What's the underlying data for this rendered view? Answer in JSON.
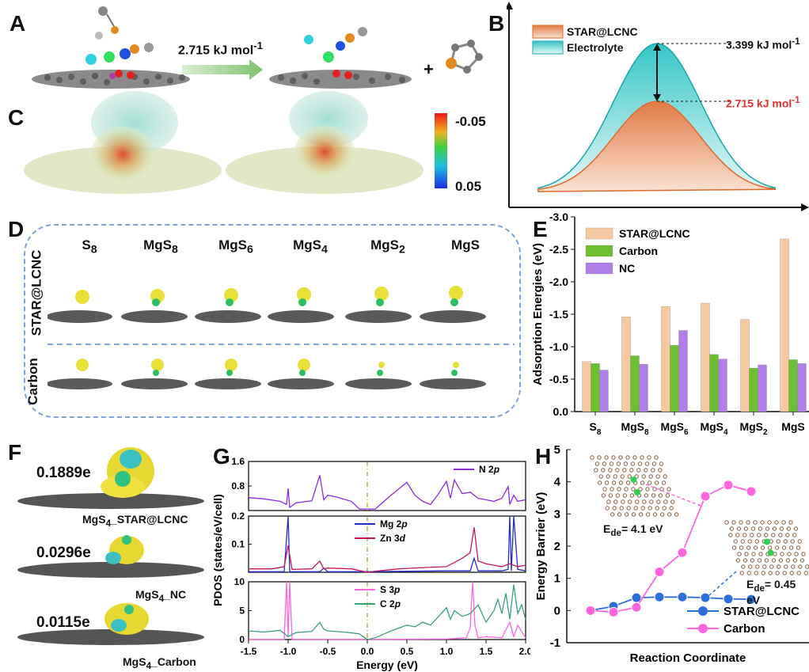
{
  "panels": {
    "A": {
      "label": "A",
      "arrow_value": "2.715 kJ mol",
      "arrow_sup": "-1",
      "plus": "+"
    },
    "B": {
      "label": "B",
      "legend": [
        "STAR@LCNC",
        "Electrolyte"
      ],
      "colors": {
        "star": "#e07a45",
        "electrolyte": "#35c5c7"
      },
      "annot_high_value": "3.399 kJ mol",
      "annot_high_sup": "-1",
      "annot_low_value": "2.715 kJ mol",
      "annot_low_sup": "-1",
      "annot_low_color": "#e0312b"
    },
    "C": {
      "label": "C",
      "colorbar_top": "-0.05",
      "colorbar_bottom": "0.05"
    },
    "D": {
      "label": "D",
      "columns": [
        "S",
        "MgS",
        "MgS",
        "MgS",
        "MgS",
        "MgS"
      ],
      "column_subs": [
        "8",
        "8",
        "6",
        "4",
        "2",
        ""
      ],
      "rows": [
        "STAR@LCNC",
        "Carbon"
      ]
    },
    "E": {
      "label": "E"
    },
    "F": {
      "label": "F",
      "charges": [
        "0.1889e",
        "0.0296e",
        "0.0115e"
      ],
      "names": [
        "MgS",
        "MgS",
        "MgS"
      ],
      "name_subs": [
        "4",
        "4",
        "4"
      ],
      "name_suffix": [
        "_STAR@LCNC",
        "_NC",
        "_Carbon"
      ]
    },
    "G": {
      "label": "G"
    },
    "H": {
      "label": "H",
      "inset1": "E",
      "inset1_sub": "de",
      "inset1_value": "= 4.1 eV",
      "inset2": "E",
      "inset2_sub": "de",
      "inset2_value": "= 0.45 eV"
    }
  },
  "chart_data": [
    {
      "type": "bar",
      "panel": "E",
      "categories": [
        "S8",
        "MgS8",
        "MgS6",
        "MgS4",
        "MgS2",
        "MgS"
      ],
      "series": [
        {
          "name": "STAR@LCNC",
          "color": "#f7c9a0",
          "values": [
            -0.77,
            -1.46,
            -1.62,
            -1.67,
            -1.42,
            -2.66
          ]
        },
        {
          "name": "Carbon",
          "color": "#6cbf2e",
          "values": [
            -0.74,
            -0.86,
            -1.02,
            -0.88,
            -0.67,
            -0.8
          ]
        },
        {
          "name": "NC",
          "color": "#b07ee6",
          "values": [
            -0.64,
            -0.73,
            -1.25,
            -0.81,
            -0.72,
            -0.74
          ]
        }
      ],
      "ylabel": "Adsorption Energies (eV)",
      "ylim": [
        0,
        -3.0
      ],
      "yticks": [
        "0.0",
        "-0.5",
        "-1.0",
        "-1.5",
        "-2.0",
        "-2.5",
        "-3.0"
      ],
      "inverted_y": true,
      "legend": "top-left"
    },
    {
      "type": "line",
      "panel": "G",
      "xlabel": "Energy (eV)",
      "ylabel": "PDOS (states/eV/cell)",
      "xlim": [
        -1.5,
        2.0
      ],
      "xticks": [
        "-1.5",
        "-1.0",
        "-0.5",
        "0.0",
        "0.5",
        "1.0",
        "1.5",
        "2.0"
      ],
      "subplots": [
        {
          "yticks": [
            "0.8",
            "1.6"
          ],
          "ylim": [
            0,
            1.6
          ],
          "series": [
            {
              "name": "N 2p",
              "color": "#8a2be2",
              "x": [
                -1.5,
                -1.3,
                -1.1,
                -1.02,
                -1.0,
                -0.98,
                -0.9,
                -0.7,
                -0.6,
                -0.55,
                -0.5,
                -0.4,
                -0.2,
                -0.1,
                0.1,
                0.3,
                0.5,
                0.6,
                0.7,
                0.8,
                0.9,
                1.0,
                1.05,
                1.1,
                1.2,
                1.3,
                1.4,
                1.5,
                1.6,
                1.7,
                1.78,
                1.8,
                1.85,
                1.9,
                2.0
              ],
              "y": [
                0.42,
                0.38,
                0.3,
                0.2,
                0.72,
                0.1,
                0.25,
                0.32,
                1.15,
                0.35,
                0.5,
                0.45,
                0.3,
                0.05,
                0.05,
                0.5,
                0.92,
                0.5,
                0.3,
                0.2,
                0.55,
                0.95,
                0.4,
                1.0,
                0.55,
                0.6,
                0.4,
                0.35,
                0.3,
                0.4,
                0.78,
                0.2,
                0.5,
                0.3,
                0.35
              ]
            }
          ]
        },
        {
          "yticks": [
            "0.1",
            "0.2"
          ],
          "ylim": [
            0,
            0.2
          ],
          "series": [
            {
              "name": "Mg 2p",
              "color": "#1f2fbf",
              "x": [
                -1.5,
                -1.05,
                -1.0,
                -0.98,
                -0.9,
                -0.6,
                -0.55,
                -0.5,
                0.0,
                1.0,
                1.3,
                1.35,
                1.4,
                1.7,
                1.78,
                1.8,
                1.82,
                1.85,
                1.9,
                2.0
              ],
              "y": [
                0.002,
                0.002,
                0.2,
                0.002,
                0.002,
                0.002,
                0.015,
                0.002,
                0.002,
                0.005,
                0.005,
                0.05,
                0.005,
                0.005,
                0.01,
                0.2,
                0.005,
                0.2,
                0.01,
                0.005
              ]
            },
            {
              "name": "Zn 3d",
              "color": "#c2185b",
              "x": [
                -1.5,
                -1.2,
                -1.05,
                -1.0,
                -0.95,
                -0.7,
                -0.6,
                -0.55,
                -0.5,
                -0.2,
                0.0,
                0.1,
                0.4,
                0.8,
                1.0,
                1.2,
                1.3,
                1.35,
                1.4,
                1.5,
                1.6,
                1.7,
                1.8,
                1.9,
                2.0
              ],
              "y": [
                0.012,
                0.012,
                0.02,
                0.095,
                0.01,
                0.012,
                0.04,
                0.012,
                0.015,
                0.012,
                0.0,
                0.004,
                0.012,
                0.018,
                0.02,
                0.05,
                0.07,
                0.16,
                0.04,
                0.03,
                0.025,
                0.02,
                0.03,
                0.02,
                0.025
              ]
            }
          ]
        },
        {
          "yticks": [
            "0",
            "5",
            "10"
          ],
          "ylim": [
            0,
            10
          ],
          "series": [
            {
              "name": "S 3p",
              "color": "#ff66dd",
              "x": [
                -1.5,
                -1.05,
                -1.02,
                -1.0,
                -0.98,
                -0.95,
                -0.9,
                0.0,
                1.0,
                1.25,
                1.3,
                1.33,
                1.36,
                1.4,
                1.5,
                1.7,
                1.8,
                1.85,
                1.9,
                2.0
              ],
              "y": [
                0.0,
                0.0,
                10,
                0.5,
                10,
                0.0,
                0.0,
                0.0,
                0.1,
                0.3,
                2.0,
                10,
                2.5,
                0.3,
                0.5,
                0.3,
                3.0,
                0.5,
                2.5,
                0.3
              ]
            },
            {
              "name": "C 2p",
              "color": "#3aa07a",
              "x": [
                -1.5,
                -1.3,
                -1.1,
                -1.0,
                -0.9,
                -0.7,
                -0.6,
                -0.55,
                -0.5,
                -0.3,
                -0.1,
                0.0,
                0.1,
                0.3,
                0.5,
                0.6,
                0.7,
                0.8,
                0.9,
                1.0,
                1.05,
                1.1,
                1.2,
                1.3,
                1.4,
                1.5,
                1.6,
                1.65,
                1.7,
                1.75,
                1.8,
                1.85,
                1.9,
                1.95,
                2.0
              ],
              "y": [
                1.5,
                1.3,
                1.6,
                0.5,
                1.2,
                1.4,
                3.0,
                1.8,
                1.5,
                1.3,
                1.0,
                0.0,
                0.3,
                1.5,
                2.5,
                2.2,
                3.0,
                2.5,
                4.0,
                5.5,
                3.5,
                5.0,
                4.0,
                4.5,
                6.0,
                3.0,
                5.0,
                7.0,
                4.5,
                8.0,
                3.5,
                9.5,
                4.5,
                6.0,
                3.5
              ]
            }
          ]
        }
      ]
    },
    {
      "type": "line",
      "panel": "H",
      "xlabel": "Reaction Coordinate",
      "ylabel": "Energy Barrier (eV)",
      "ylim": [
        -1,
        5
      ],
      "yticks": [
        "-1",
        "0",
        "1",
        "2",
        "3",
        "4",
        "5"
      ],
      "legend": "bottom-right",
      "series": [
        {
          "name": "STAR@LCNC",
          "color": "#2c6fd6",
          "y": [
            0.0,
            0.13,
            0.4,
            0.42,
            0.42,
            0.4,
            0.36,
            0.35
          ]
        },
        {
          "name": "Carbon",
          "color": "#ff66dd",
          "y": [
            0.0,
            -0.05,
            0.1,
            1.2,
            1.8,
            3.55,
            3.9,
            3.7
          ]
        }
      ]
    }
  ]
}
